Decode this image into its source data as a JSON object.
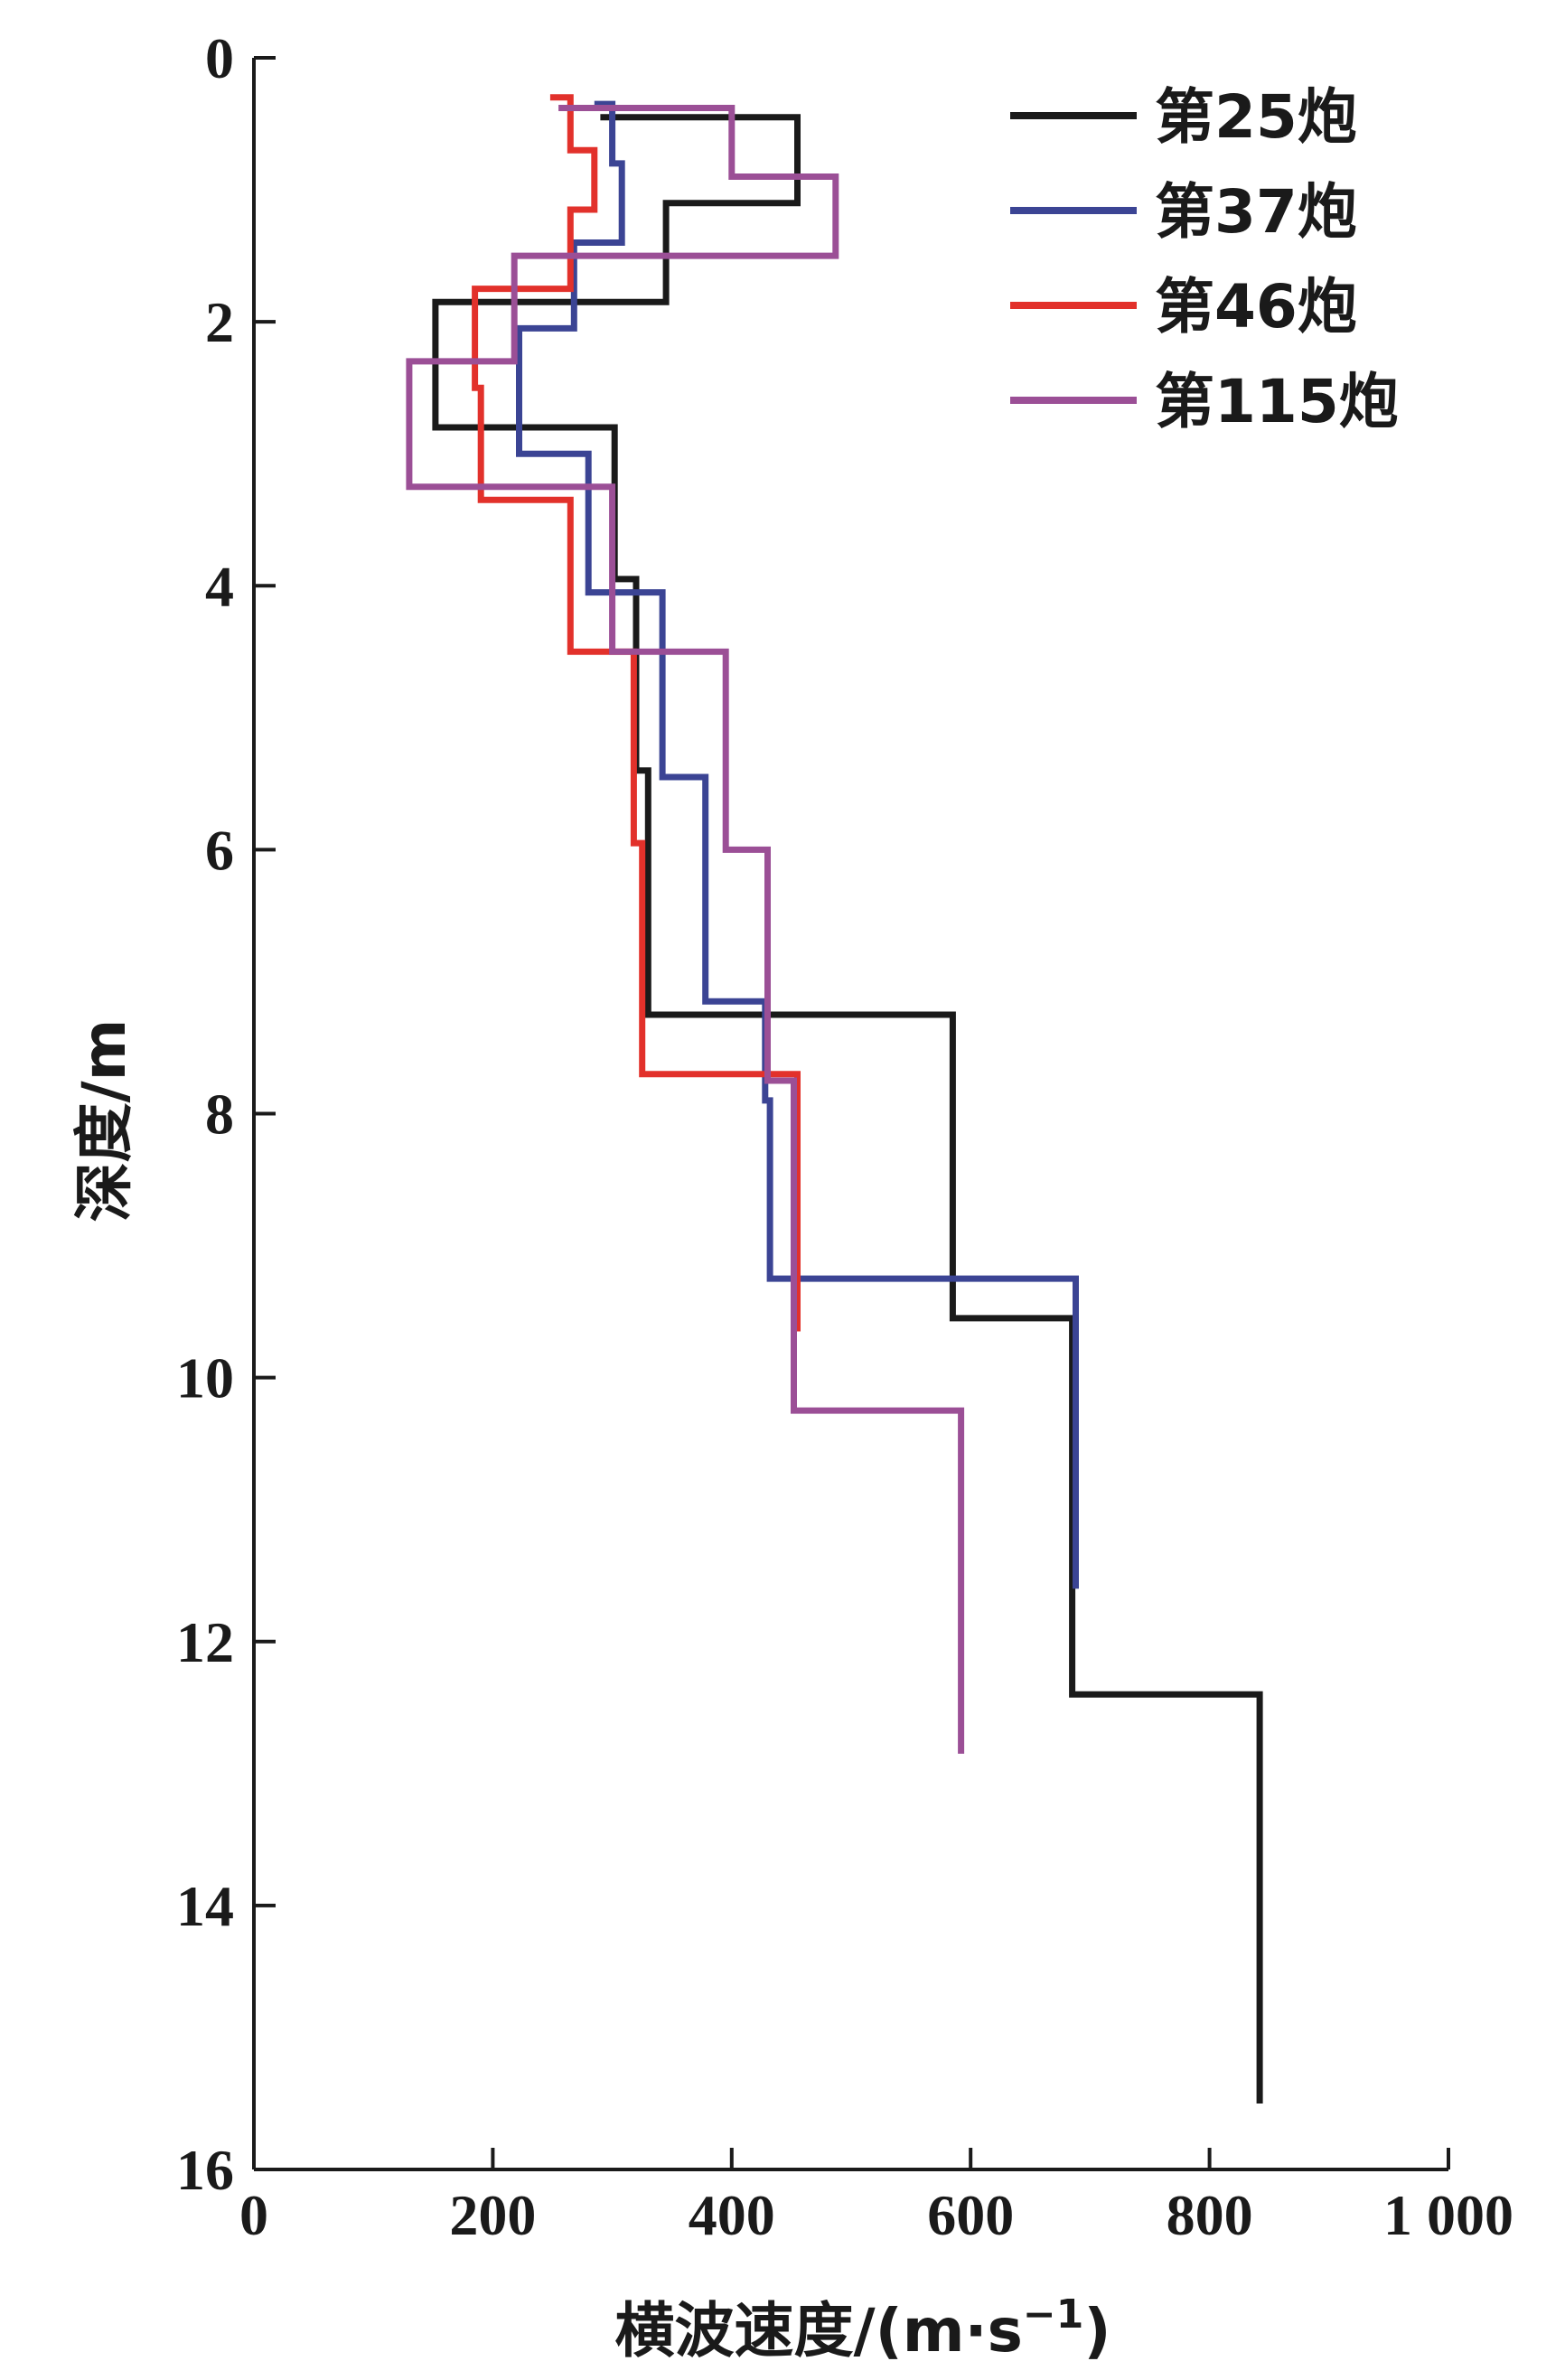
{
  "chart_data": {
    "type": "line",
    "subtype": "step-profile",
    "title": "",
    "xlabel": "横波速度/(m·s",
    "xlabel_sup": "−1",
    "xlabel_close": ")",
    "ylabel": "深度/m",
    "xlim": [
      0,
      1000
    ],
    "ylim": [
      0,
      16
    ],
    "y_inverted": true,
    "x_ticks": [
      0,
      200,
      400,
      600,
      800,
      1000
    ],
    "x_tick_labels": [
      "0",
      "200",
      "400",
      "600",
      "800",
      "1 000"
    ],
    "y_ticks": [
      0,
      2,
      4,
      6,
      8,
      10,
      12,
      14,
      16
    ],
    "y_tick_labels": [
      "0",
      "2",
      "4",
      "6",
      "8",
      "10",
      "12",
      "14",
      "16"
    ],
    "legend_position": "top-right",
    "series": [
      {
        "name": "第25炮",
        "color": "#1a1a1a",
        "depth": [
          0.45,
          0.45,
          1.1,
          1.1,
          1.85,
          1.85,
          2.8,
          2.8,
          3.25,
          3.25,
          3.95,
          3.95,
          5.4,
          5.4,
          7.25,
          7.25,
          9.55,
          9.55,
          12.4,
          12.4,
          15.5
        ],
        "velocity": [
          290,
          455,
          455,
          345,
          345,
          152,
          152,
          302,
          302,
          302,
          302,
          320,
          320,
          330,
          330,
          585,
          585,
          685,
          685,
          842,
          842
        ]
      },
      {
        "name": "第37炮",
        "color": "#3b4494",
        "depth": [
          0.35,
          0.35,
          0.8,
          0.8,
          1.4,
          1.4,
          2.05,
          2.05,
          3.0,
          3.0,
          4.05,
          4.05,
          5.45,
          5.45,
          7.15,
          7.15,
          7.9,
          7.9,
          9.25,
          9.25,
          11.6
        ],
        "velocity": [
          285,
          300,
          300,
          308,
          308,
          268,
          268,
          222,
          222,
          280,
          280,
          342,
          342,
          378,
          378,
          428,
          428,
          432,
          432,
          688,
          688
        ]
      },
      {
        "name": "第46炮",
        "color": "#e2312b",
        "depth": [
          0.3,
          0.3,
          0.7,
          0.7,
          1.15,
          1.15,
          1.75,
          1.75,
          2.5,
          2.5,
          3.35,
          3.35,
          4.5,
          4.5,
          5.95,
          5.95,
          7.7,
          7.7,
          9.65
        ],
        "velocity": [
          248,
          265,
          265,
          285,
          285,
          265,
          265,
          185,
          185,
          190,
          190,
          265,
          265,
          318,
          318,
          325,
          325,
          455,
          455
        ]
      },
      {
        "name": "第115炮",
        "color": "#9b4f96",
        "depth": [
          0.38,
          0.38,
          0.9,
          0.9,
          1.5,
          1.5,
          2.3,
          2.3,
          3.25,
          3.25,
          4.5,
          4.5,
          6.0,
          6.0,
          7.75,
          7.75,
          10.25,
          10.25,
          12.85
        ],
        "velocity": [
          255,
          400,
          400,
          487,
          487,
          218,
          218,
          130,
          130,
          300,
          300,
          395,
          395,
          430,
          430,
          452,
          452,
          592,
          592
        ]
      }
    ]
  }
}
